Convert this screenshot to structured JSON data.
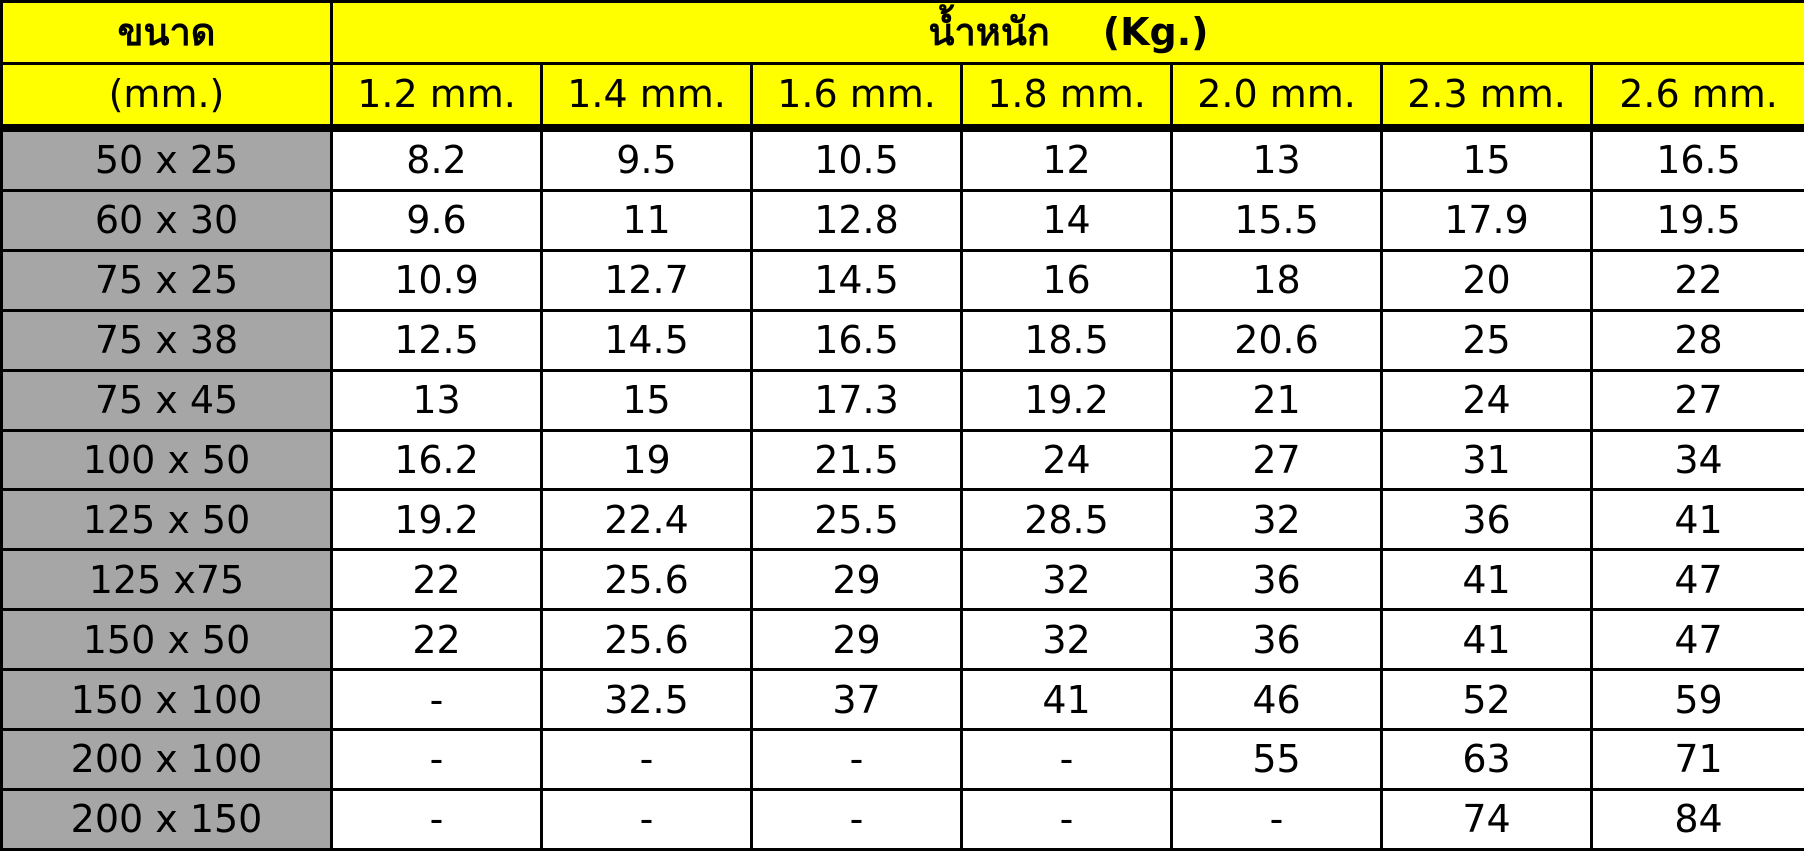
{
  "header": {
    "size_label": "ขนาด",
    "size_unit": "(mm.)",
    "weight_label": "น้ำหนัก    (Kg.)",
    "thicknesses": [
      "1.2 mm.",
      "1.4 mm.",
      "1.6 mm.",
      "1.8 mm.",
      "2.0 mm.",
      "2.3 mm.",
      "2.6 mm."
    ]
  },
  "rows": [
    {
      "size": "50 x 25",
      "values": [
        "8.2",
        "9.5",
        "10.5",
        "12",
        "13",
        "15",
        "16.5"
      ]
    },
    {
      "size": "60 x 30",
      "values": [
        "9.6",
        "11",
        "12.8",
        "14",
        "15.5",
        "17.9",
        "19.5"
      ]
    },
    {
      "size": "75 x 25",
      "values": [
        "10.9",
        "12.7",
        "14.5",
        "16",
        "18",
        "20",
        "22"
      ]
    },
    {
      "size": "75 x 38",
      "values": [
        "12.5",
        "14.5",
        "16.5",
        "18.5",
        "20.6",
        "25",
        "28"
      ]
    },
    {
      "size": "75 x 45",
      "values": [
        "13",
        "15",
        "17.3",
        "19.2",
        "21",
        "24",
        "27"
      ]
    },
    {
      "size": "100 x 50",
      "values": [
        "16.2",
        "19",
        "21.5",
        "24",
        "27",
        "31",
        "34"
      ]
    },
    {
      "size": "125 x 50",
      "values": [
        "19.2",
        "22.4",
        "25.5",
        "28.5",
        "32",
        "36",
        "41"
      ]
    },
    {
      "size": "125 x75",
      "values": [
        "22",
        "25.6",
        "29",
        "32",
        "36",
        "41",
        "47"
      ]
    },
    {
      "size": "150 x 50",
      "values": [
        "22",
        "25.6",
        "29",
        "32",
        "36",
        "41",
        "47"
      ]
    },
    {
      "size": "150 x 100",
      "values": [
        "-",
        "32.5",
        "37",
        "41",
        "46",
        "52",
        "59"
      ]
    },
    {
      "size": "200 x 100",
      "values": [
        "-",
        "-",
        "-",
        "-",
        "55",
        "63",
        "71"
      ]
    },
    {
      "size": "200 x 150",
      "values": [
        "-",
        "-",
        "-",
        "-",
        "-",
        "74",
        "84"
      ]
    }
  ],
  "colors": {
    "header_bg": "#ffff00",
    "size_col_bg": "#a6a6a6",
    "cell_bg": "#ffffff",
    "border": "#000000"
  }
}
